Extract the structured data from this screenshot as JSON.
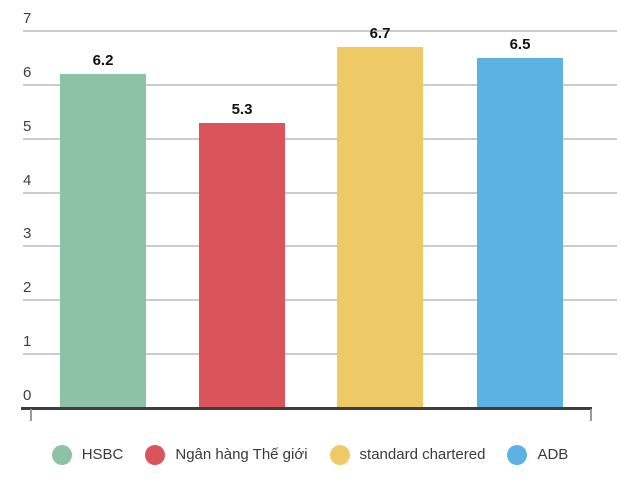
{
  "chart_data": {
    "type": "bar",
    "categories": [
      "HSBC",
      "Ngân hàng Thế giới",
      "standard chartered",
      "ADB"
    ],
    "values": [
      6.2,
      5.3,
      6.7,
      6.5
    ],
    "value_labels": [
      "6.2",
      "5.3",
      "6.7",
      "6.5"
    ],
    "colors": [
      "#8cc3a6",
      "#d9545b",
      "#eeca67",
      "#5cb3e3"
    ],
    "title": "",
    "xlabel": "",
    "ylabel": "",
    "ylim": [
      0,
      7
    ],
    "y_ticks": [
      "0",
      "1",
      "2",
      "3",
      "4",
      "5",
      "6",
      "7"
    ],
    "grid": true,
    "legend_position": "bottom"
  },
  "styles": {
    "background": "#ffffff",
    "grid_color": "#cccccc",
    "axis_color": "#3d3d3d",
    "tick_color": "#9a9a9a",
    "axis_label_color": "#3f3f3f",
    "value_label_color": "#111111",
    "legend_label_color": "#3a3a3a"
  }
}
